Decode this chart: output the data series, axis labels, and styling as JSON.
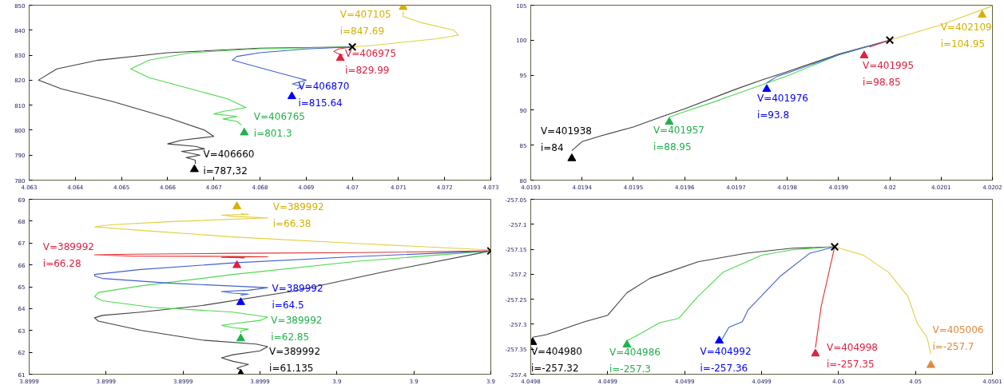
{
  "chart_data": [
    {
      "type": "line",
      "grid": false,
      "xlim": [
        4.063,
        4.073
      ],
      "xticks": [
        4.063,
        4.064,
        4.065,
        4.066,
        4.067,
        4.068,
        4.069,
        4.07,
        4.071,
        4.072,
        4.073
      ],
      "ylim": [
        780,
        850
      ],
      "yticks": [
        780,
        790,
        800,
        810,
        820,
        830,
        840,
        850
      ],
      "series": [
        {
          "color": "#404040",
          "x": [
            4.07,
            4.068,
            4.066,
            4.0645,
            4.0636,
            4.0632,
            4.0637,
            4.0648,
            4.066,
            4.0668,
            4.067,
            4.0663,
            4.066,
            4.0666,
            4.0668,
            4.0663,
            4.0667,
            4.0664,
            4.0666,
            4.0666
          ],
          "values": [
            833.3,
            832.8,
            831,
            828,
            824.5,
            820,
            816.5,
            811.5,
            805,
            800,
            797.5,
            796,
            794.5,
            793.5,
            792.5,
            791.5,
            790,
            789,
            788,
            786.5
          ]
        },
        {
          "color": "#4cd94c",
          "x": [
            4.07,
            4.068,
            4.0665,
            4.0656,
            4.0652,
            4.0656,
            4.0665,
            4.0673,
            4.0677,
            4.0672,
            4.067,
            4.0675,
            4.0672,
            4.0675,
            4.0676
          ],
          "values": [
            833.3,
            832.6,
            831,
            828,
            824.5,
            821,
            816.5,
            812.5,
            809,
            807.5,
            806.5,
            805.5,
            804.5,
            803.5,
            802
          ]
        },
        {
          "color": "#4060d0",
          "x": [
            4.07,
            4.069,
            4.068,
            4.0675,
            4.0674,
            4.0677,
            4.0683,
            4.0688,
            4.069,
            4.0687,
            4.0689,
            4.0688
          ],
          "values": [
            833.3,
            832.5,
            831,
            829.5,
            828,
            826.5,
            823.5,
            821,
            820,
            818.5,
            817.5,
            816.5
          ]
        },
        {
          "color": "#e03030",
          "x": [
            4.07,
            4.0697,
            4.0696,
            4.0697,
            4.0698
          ],
          "values": [
            833.3,
            832.5,
            831.5,
            830.5,
            830
          ]
        },
        {
          "color": "#e0d040",
          "x": [
            4.07,
            4.0705,
            4.071,
            4.0718,
            4.0723,
            4.0722,
            4.0715,
            4.0711,
            4.0711,
            4.0711
          ],
          "values": [
            833.3,
            834,
            835,
            836.5,
            838,
            840,
            843,
            845.5,
            846.5,
            847.5
          ]
        },
        {
          "type": "scatter",
          "marker": "triangle",
          "colors": [
            "#000000",
            "#22b14c",
            "#0000ff",
            "#e02040",
            "#d4b000"
          ],
          "x": [
            4.06658,
            4.06766,
            4.06869,
            4.06974,
            4.0711
          ],
          "values": [
            784.3,
            799,
            813.5,
            828.8,
            849.2
          ]
        },
        {
          "type": "scatter",
          "marker": "cross",
          "color": "#000000",
          "x": [
            4.07
          ],
          "values": [
            833.3
          ]
        }
      ],
      "annotations": [
        {
          "text": "V=406660\ni=787,32",
          "x": 4.06658,
          "y": 784.3
        },
        {
          "text": "V=406765\ni=801.3",
          "x": 4.06766,
          "y": 799
        },
        {
          "text": "V=406870\ni=815.64",
          "x": 4.06869,
          "y": 813.5
        },
        {
          "text": "V=406975\ni=829.99",
          "x": 4.06974,
          "y": 828.8
        },
        {
          "text": "V=407105\ni=847.69",
          "x": 4.0711,
          "y": 849.2
        }
      ]
    },
    {
      "type": "line",
      "grid": false,
      "xlim": [
        4.0193,
        4.0202
      ],
      "xticks": [
        4.0193,
        4.0194,
        4.0195,
        4.0196,
        4.0197,
        4.0198,
        4.0199,
        4.02,
        4.0201,
        4.0202
      ],
      "ylim": [
        80,
        105
      ],
      "yticks": [
        80,
        85,
        90,
        95,
        100,
        105
      ],
      "series": [
        {
          "color": "#404040",
          "x": [
            4.01938,
            4.0194,
            4.01944,
            4.0195,
            4.01956,
            4.0196,
            4.0197,
            4.01975,
            4.0198,
            4.01988,
            4.0199,
            4.02
          ],
          "values": [
            84.2,
            85.5,
            86.4,
            87.6,
            89.2,
            90.2,
            93,
            94.3,
            95.5,
            97.5,
            98,
            100
          ]
        },
        {
          "color": "#4cd94c",
          "x": [
            4.01957,
            4.0196,
            4.01965,
            4.0197,
            4.0198,
            4.0199,
            4.02
          ],
          "values": [
            89,
            89.8,
            91,
            92.3,
            94.9,
            97.9,
            100
          ]
        },
        {
          "color": "#4060d0",
          "x": [
            4.01976,
            4.01978,
            4.0198,
            4.0199,
            4.02
          ],
          "values": [
            93.9,
            94.8,
            95.3,
            97.9,
            100
          ]
        },
        {
          "color": "#e03030",
          "x": [
            4.01996,
            4.02
          ],
          "values": [
            99,
            100
          ]
        },
        {
          "color": "#e0d040",
          "x": [
            4.02,
            4.0201,
            4.0202
          ],
          "values": [
            100,
            102.2,
            104.9
          ]
        },
        {
          "type": "scatter",
          "marker": "triangle",
          "colors": [
            "#000000",
            "#22b14c",
            "#0000ff",
            "#e02040",
            "#d4b000"
          ],
          "x": [
            4.01938,
            4.01957,
            4.01976,
            4.01995,
            4.02018
          ],
          "values": [
            83.1,
            88.3,
            93,
            97.8,
            103.6
          ]
        },
        {
          "type": "scatter",
          "marker": "cross",
          "color": "#000000",
          "x": [
            4.02
          ],
          "values": [
            100
          ]
        }
      ],
      "annotations": [
        {
          "text": "V=401938\ni=84",
          "x": 4.01938,
          "y": 83.1
        },
        {
          "text": "V=401957\ni=88.95",
          "x": 4.01957,
          "y": 88.3
        },
        {
          "text": "V=401976\ni=93.8",
          "x": 4.01976,
          "y": 93
        },
        {
          "text": "V=401995\ni=98.85",
          "x": 4.01995,
          "y": 97.8
        },
        {
          "text": "V=402109\ni=104.95",
          "x": 4.02018,
          "y": 103.6
        }
      ]
    },
    {
      "type": "line",
      "grid": false,
      "xlim": [
        3.89988,
        3.9
      ],
      "xticks": [
        {
          "value": 3.89988,
          "label": "3.8999"
        },
        {
          "value": 3.8999,
          "label": "3.8999"
        },
        {
          "value": 3.89992,
          "label": "3.8999"
        },
        {
          "value": 3.89994,
          "label": "3.8999"
        },
        {
          "value": 3.89996,
          "label": "3.9"
        },
        {
          "value": 3.89998,
          "label": "3.9"
        },
        {
          "value": 3.9,
          "label": "3.9"
        }
      ],
      "ylim": [
        61,
        69
      ],
      "yticks": [
        61,
        62,
        63,
        64,
        65,
        66,
        67,
        68,
        69
      ],
      "series": [
        {
          "color": "#404040",
          "x": [
            3.9,
            3.899973,
            3.899949,
            3.899925,
            3.899909,
            3.899899,
            3.899897,
            3.899898,
            3.899909,
            3.899925,
            3.899939,
            3.899942,
            3.89994,
            3.899933,
            3.89993,
            3.899933,
            3.899937,
            3.899935,
            3.899934,
            3.899935,
            3.899935
          ],
          "values": [
            66.64,
            65.71,
            64.81,
            64.14,
            63.84,
            63.69,
            63.58,
            63.43,
            63.01,
            62.56,
            62.38,
            62.26,
            62.07,
            61.89,
            61.75,
            61.59,
            61.45,
            61.34,
            61.27,
            61.18,
            61.08
          ]
        },
        {
          "color": "#4cd94c",
          "x": [
            3.9,
            3.899965,
            3.899933,
            3.899909,
            3.899898,
            3.899897,
            3.899899,
            3.899912,
            3.899933,
            3.899942,
            3.89994,
            3.899933,
            3.89993,
            3.899933,
            3.899937,
            3.899935,
            3.899935
          ],
          "values": [
            66.64,
            66.16,
            65.56,
            65.04,
            64.74,
            64.54,
            64.36,
            64.06,
            63.84,
            63.61,
            63.46,
            63.31,
            63.24,
            63.13,
            63.06,
            62.97,
            62.87
          ]
        },
        {
          "color": "#4060d0",
          "x": [
            3.9,
            3.899965,
            3.899933,
            3.899909,
            3.899897,
            3.899897,
            3.899899,
            3.899917,
            3.899942,
            3.899937,
            3.89993,
            3.899933,
            3.899937,
            3.899935
          ],
          "values": [
            66.64,
            66.38,
            66.09,
            65.79,
            65.56,
            65.49,
            65.38,
            65.16,
            64.96,
            64.84,
            64.78,
            64.71,
            64.66,
            64.62
          ]
        },
        {
          "color": "#e03030",
          "x": [
            3.9,
            3.899965,
            3.899933,
            3.899907,
            3.899897,
            3.899907,
            3.899933,
            3.899942,
            3.899933,
            3.89993,
            3.899936,
            3.899935
          ],
          "values": [
            66.64,
            66.56,
            66.53,
            66.49,
            66.46,
            66.4,
            66.39,
            66.37,
            66.36,
            66.34,
            66.33,
            66.31
          ]
        },
        {
          "color": "#e0d040",
          "x": [
            3.9,
            3.899965,
            3.899933,
            3.899909,
            3.899897,
            3.899901,
            3.899917,
            3.899942,
            3.899933,
            3.89993,
            3.899937,
            3.899935
          ],
          "values": [
            66.68,
            66.98,
            67.28,
            67.58,
            67.74,
            67.83,
            67.98,
            68.15,
            68.22,
            68.28,
            68.31,
            68.34
          ]
        },
        {
          "type": "scatter",
          "marker": "triangle",
          "colors": [
            "#000000",
            "#22b14c",
            "#0000ff",
            "#e02040",
            "#d4b000"
          ],
          "x": [
            3.899935,
            3.899935,
            3.899935,
            3.899934,
            3.899934
          ],
          "values": [
            61.02,
            62.63,
            64.29,
            65.98,
            68.67
          ]
        },
        {
          "type": "scatter",
          "marker": "cross",
          "color": "#000000",
          "x": [
            3.9
          ],
          "values": [
            66.64
          ]
        }
      ],
      "annotations": [
        "V=389992\ni=61.135",
        "V=389992\ni=62.85",
        "V=389992\ni=64.5",
        "V=389992\ni=66.28",
        "V=389992\ni=66.38"
      ]
    },
    {
      "type": "line",
      "grid": false,
      "xlim": [
        4.04982,
        4.05006
      ],
      "xticks": [
        {
          "value": 4.04982,
          "label": "4.0498"
        },
        {
          "value": 4.04986,
          "label": "4.0499"
        },
        {
          "value": 4.0499,
          "label": "4.0499"
        },
        {
          "value": 4.04994,
          "label": "4.0499"
        },
        {
          "value": 4.04998,
          "label": "4.05"
        },
        {
          "value": 4.05002,
          "label": "4.05"
        },
        {
          "value": 4.05006,
          "label": "4.0501"
        }
      ],
      "ylim": [
        -257.4,
        -257.05
      ],
      "yticks": [
        -257.4,
        -257.35,
        -257.3,
        -257.25,
        -257.2,
        -257.15,
        -257.1,
        -257.05
      ],
      "series": [
        {
          "color": "#404040",
          "x": [
            4.049978,
            4.049956,
            4.049932,
            4.049907,
            4.049882,
            4.04987,
            4.04986,
            4.049848,
            4.049835,
            4.049828,
            4.049821
          ],
          "values": [
            -257.145,
            -257.148,
            -257.158,
            -257.175,
            -257.208,
            -257.237,
            -257.282,
            -257.295,
            -257.312,
            -257.321,
            -257.326
          ]
        },
        {
          "color": "#4cd94c",
          "x": [
            4.049978,
            4.049956,
            4.04994,
            4.04992,
            4.049907,
            4.049897,
            4.049887,
            4.049877,
            4.04987
          ],
          "values": [
            -257.145,
            -257.151,
            -257.162,
            -257.196,
            -257.244,
            -257.288,
            -257.297,
            -257.319,
            -257.333
          ]
        },
        {
          "color": "#4060d0",
          "x": [
            4.049978,
            4.049965,
            4.04995,
            4.049938,
            4.049933,
            4.04993,
            4.049923,
            4.049919
          ],
          "values": [
            -257.145,
            -257.158,
            -257.203,
            -257.251,
            -257.271,
            -257.295,
            -257.306,
            -257.333
          ]
        },
        {
          "color": "#e03030",
          "x": [
            4.049978,
            4.049975,
            4.049971,
            4.049969,
            4.049968
          ],
          "values": [
            -257.145,
            -257.196,
            -257.264,
            -257.319,
            -257.347
          ]
        },
        {
          "color": "#e0d040",
          "x": [
            4.049978,
            4.049993,
            4.050006,
            4.050016,
            4.050021,
            4.050026,
            4.050028
          ],
          "values": [
            -257.145,
            -257.162,
            -257.196,
            -257.244,
            -257.299,
            -257.326,
            -257.36
          ]
        },
        {
          "type": "scatter",
          "marker": "triangle",
          "colors": [
            "#000000",
            "#22b14c",
            "#0000ff",
            "#e02040",
            "#e08840"
          ],
          "x": [
            4.049821,
            4.04987,
            4.049918,
            4.049968,
            4.050028
          ],
          "values": [
            -257.336,
            -257.341,
            -257.333,
            -257.359,
            -257.382
          ]
        },
        {
          "type": "scatter",
          "marker": "cross",
          "color": "#000000",
          "x": [
            4.049978
          ],
          "values": [
            -257.145
          ]
        }
      ],
      "annotations": [
        {
          "text": "V=404980\ni=-257.32",
          "x": 4.049821,
          "y": -257.336
        },
        {
          "text": "V=404986\ni=-257.3",
          "x": 4.04987,
          "y": -257.341
        },
        {
          "text": "V=404992\ni=-257.36",
          "x": 4.049918,
          "y": -257.333
        },
        {
          "text": "V=404998\ni=-257.35",
          "x": 4.049968,
          "y": -257.359
        },
        {
          "text": "V=405006\ni=-257.7",
          "x": 4.050028,
          "y": -257.382
        }
      ]
    }
  ]
}
